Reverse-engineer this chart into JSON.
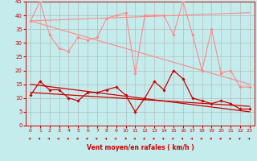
{
  "bg_color": "#c5ecec",
  "grid_color": "#b0b0b0",
  "xlabel": "Vent moyen/en rafales ( km/h )",
  "xlim": [
    -0.5,
    23.5
  ],
  "ylim": [
    0,
    45
  ],
  "yticks": [
    0,
    5,
    10,
    15,
    20,
    25,
    30,
    35,
    40,
    45
  ],
  "xticks": [
    0,
    1,
    2,
    3,
    4,
    5,
    6,
    7,
    8,
    9,
    10,
    11,
    12,
    13,
    14,
    15,
    16,
    17,
    18,
    19,
    20,
    21,
    22,
    23
  ],
  "series": [
    {
      "name": "rafales_zigzag",
      "color": "#ff8888",
      "linewidth": 0.8,
      "marker": "D",
      "markersize": 1.8,
      "data_x": [
        0,
        1,
        2,
        3,
        4,
        5,
        6,
        7,
        8,
        9,
        10,
        11,
        12,
        13,
        14,
        15,
        16,
        17,
        18,
        19,
        20,
        21,
        22,
        23
      ],
      "data_y": [
        38,
        45,
        33,
        28,
        27,
        32,
        31,
        32,
        39,
        40,
        41,
        19,
        40,
        40,
        40,
        33,
        45,
        33,
        20,
        35,
        19,
        20,
        14,
        14
      ]
    },
    {
      "name": "rafales_trend_down",
      "color": "#ff8888",
      "linewidth": 0.8,
      "marker": null,
      "markersize": 0,
      "data_x": [
        0,
        23
      ],
      "data_y": [
        38,
        15
      ]
    },
    {
      "name": "rafales_trend_flat",
      "color": "#ff8888",
      "linewidth": 0.8,
      "marker": null,
      "markersize": 0,
      "data_x": [
        0,
        23
      ],
      "data_y": [
        38,
        41
      ]
    },
    {
      "name": "mean_zigzag",
      "color": "#cc0000",
      "linewidth": 0.9,
      "marker": "D",
      "markersize": 1.8,
      "data_x": [
        0,
        1,
        2,
        3,
        4,
        5,
        6,
        7,
        8,
        9,
        10,
        11,
        12,
        13,
        14,
        15,
        16,
        17,
        18,
        19,
        20,
        21,
        22,
        23
      ],
      "data_y": [
        11,
        16,
        13,
        13,
        10,
        9,
        12,
        12,
        13,
        14,
        11,
        5,
        10,
        16,
        13,
        20,
        17,
        10,
        9,
        8,
        9,
        8,
        6,
        6
      ]
    },
    {
      "name": "mean_trend1",
      "color": "#cc0000",
      "linewidth": 0.9,
      "marker": null,
      "markersize": 0,
      "data_x": [
        0,
        23
      ],
      "data_y": [
        12,
        7
      ]
    },
    {
      "name": "mean_trend2",
      "color": "#cc0000",
      "linewidth": 0.9,
      "marker": null,
      "markersize": 0,
      "data_x": [
        0,
        23
      ],
      "data_y": [
        15,
        5
      ]
    }
  ],
  "arrows": {
    "color": "#cc0000",
    "angles": [
      45,
      45,
      45,
      45,
      45,
      45,
      45,
      45,
      45,
      45,
      90,
      45,
      45,
      45,
      45,
      45,
      45,
      45,
      45,
      45,
      45,
      45,
      45,
      45
    ]
  }
}
